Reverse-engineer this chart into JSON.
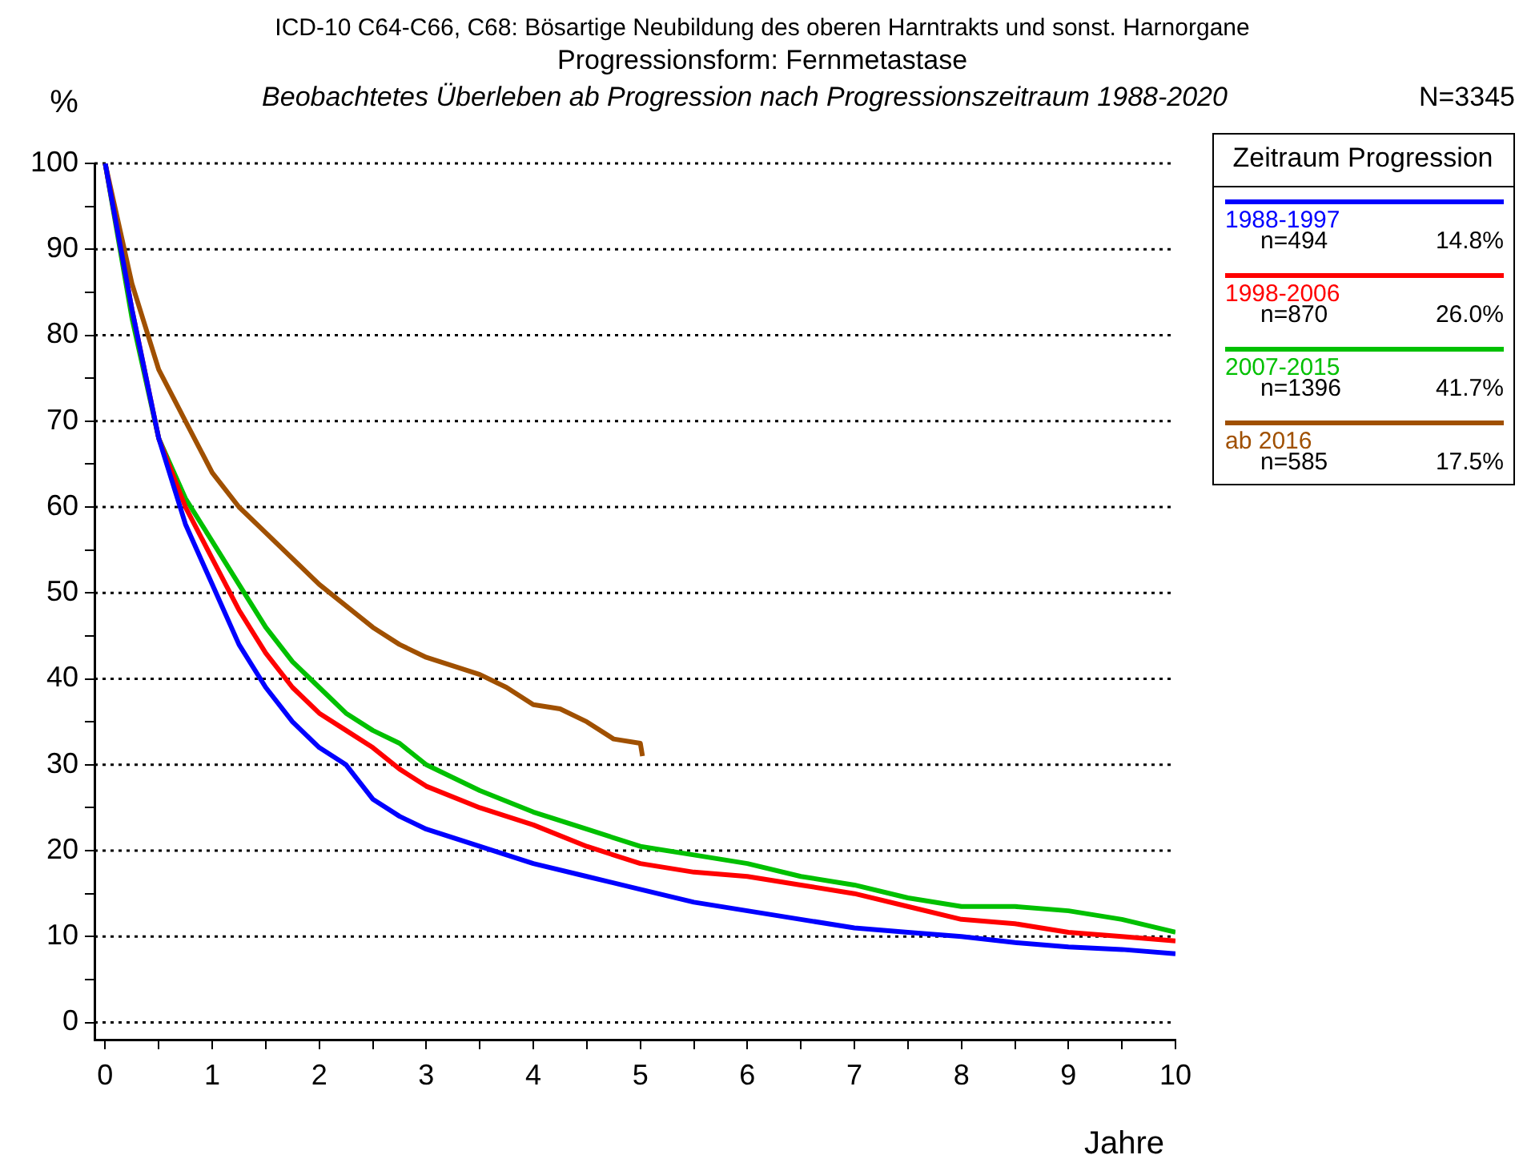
{
  "chart_data": {
    "type": "line",
    "title": "ICD-10 C64-C66, C68: Bösartige Neubildung des oberen Harntrakts und sonst. Harnorgane",
    "subtitle": "Progressionsform: Fernmetastase",
    "ylabel": "%",
    "xlabel": "Jahre",
    "legend_title": "Zeitraum Progression",
    "legend": "top right",
    "grid": "y",
    "marker": "none",
    "line_style": "solid",
    "annotations": [
      "Beobachtetes Überleben ab Progression nach Progressionszeitraum 1988-2020",
      "N=3345",
      "n=494",
      "14.8%",
      "n=870",
      "26.0%",
      "n=1396",
      "41.7%",
      "n=585",
      "17.5%"
    ],
    "xlim": [
      -0.1,
      10
    ],
    "ylim": [
      -2,
      100
    ],
    "xticks": [
      0,
      {
        "value": 0.5,
        "label": null
      },
      1,
      {
        "value": 1.5,
        "label": null
      },
      2,
      {
        "value": 2.5,
        "label": null
      },
      3,
      {
        "value": 3.5,
        "label": null
      },
      4,
      {
        "value": 4.5,
        "label": null
      },
      5,
      {
        "value": 5.5,
        "label": null
      },
      6,
      {
        "value": 6.5,
        "label": null
      },
      7,
      {
        "value": 7.5,
        "label": null
      },
      8,
      {
        "value": 8.5,
        "label": null
      },
      9,
      {
        "value": 9.5,
        "label": null
      },
      10
    ],
    "yticks": [
      0,
      {
        "value": 5,
        "label": null
      },
      10,
      {
        "value": 15,
        "label": null
      },
      20,
      {
        "value": 25,
        "label": null
      },
      30,
      {
        "value": 35,
        "label": null
      },
      40,
      {
        "value": 45,
        "label": null
      },
      50,
      {
        "value": 55,
        "label": null
      },
      60,
      {
        "value": 65,
        "label": null
      },
      70,
      {
        "value": 75,
        "label": null
      },
      80,
      {
        "value": 85,
        "label": null
      },
      90,
      {
        "value": 95,
        "label": null
      },
      100
    ],
    "series": [
      {
        "name": "1988-1997",
        "color": "#0000ff",
        "x": [
          0,
          0.25,
          0.5,
          0.75,
          1,
          1.25,
          1.5,
          1.75,
          2,
          2.25,
          2.5,
          2.75,
          3,
          3.5,
          4,
          4.5,
          5,
          5.5,
          6,
          6.5,
          7,
          7.5,
          8,
          8.5,
          9,
          9.5,
          10
        ],
        "values": [
          100,
          83,
          68,
          58,
          51,
          44,
          39,
          35,
          32,
          30,
          26,
          24,
          22.5,
          20.5,
          18.5,
          17,
          15.5,
          14,
          13,
          12,
          11,
          10.5,
          10,
          9.3,
          8.8,
          8.5,
          8
        ]
      },
      {
        "name": "1998-2006",
        "color": "#ff0000",
        "x": [
          0,
          0.25,
          0.5,
          0.75,
          1,
          1.25,
          1.5,
          1.75,
          2,
          2.25,
          2.5,
          2.75,
          3,
          3.5,
          4,
          4.5,
          5,
          5.5,
          6,
          6.5,
          7,
          7.5,
          8,
          8.5,
          9,
          9.5,
          10
        ],
        "values": [
          100,
          83,
          68,
          60,
          54,
          48,
          43,
          39,
          36,
          34,
          32,
          29.5,
          27.5,
          25,
          23,
          20.5,
          18.5,
          17.5,
          17,
          16,
          15,
          13.5,
          12,
          11.5,
          10.5,
          10,
          9.5
        ]
      },
      {
        "name": "2007-2015",
        "color": "#00c000",
        "x": [
          0,
          0.25,
          0.5,
          0.75,
          1,
          1.25,
          1.5,
          1.75,
          2,
          2.25,
          2.5,
          2.75,
          3,
          3.5,
          4,
          4.5,
          5,
          5.5,
          6,
          6.5,
          7,
          7.5,
          8,
          8.5,
          9,
          9.5,
          10
        ],
        "values": [
          100,
          82,
          68,
          61,
          56,
          51,
          46,
          42,
          39,
          36,
          34,
          32.5,
          30,
          27,
          24.5,
          22.5,
          20.5,
          19.5,
          18.5,
          17,
          16,
          14.5,
          13.5,
          13.5,
          13,
          12,
          10.5
        ]
      },
      {
        "name": "ab 2016",
        "color": "#a05000",
        "x": [
          0,
          0.25,
          0.5,
          0.75,
          1,
          1.25,
          1.5,
          1.75,
          2,
          2.25,
          2.5,
          2.75,
          3,
          3.25,
          3.5,
          3.75,
          4,
          4.25,
          4.5,
          4.75,
          5,
          5.02
        ],
        "values": [
          100,
          86,
          76,
          70,
          64,
          60,
          57,
          54,
          51,
          48.5,
          46,
          44,
          42.5,
          41.5,
          40.5,
          39,
          37,
          36.5,
          35,
          33,
          32.5,
          31
        ]
      }
    ]
  }
}
